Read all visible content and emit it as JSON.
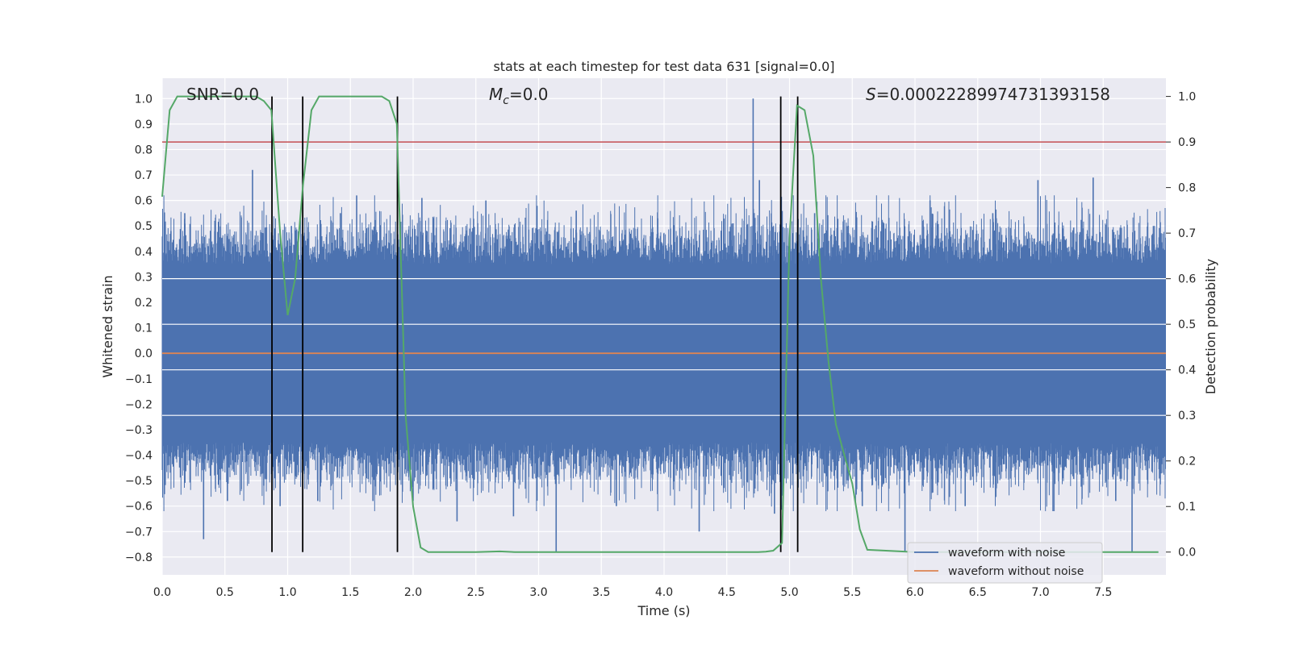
{
  "chart_data": {
    "type": "line",
    "title": "stats at each timestep for test data 631 [signal=0.0]",
    "xlabel": "Time (s)",
    "ylabel": "Whitened strain",
    "y2label": "Detection probability",
    "xlim": [
      0.0,
      8.0
    ],
    "ylim": [
      -0.87,
      1.08
    ],
    "y2lim": [
      -0.05,
      1.04
    ],
    "x_ticks": [
      0.0,
      0.5,
      1.0,
      1.5,
      2.0,
      2.5,
      3.0,
      3.5,
      4.0,
      4.5,
      5.0,
      5.5,
      6.0,
      6.5,
      7.0,
      7.5
    ],
    "x_tick_labels": [
      "0.0",
      "0.5",
      "1.0",
      "1.5",
      "2.0",
      "2.5",
      "3.0",
      "3.5",
      "4.0",
      "4.5",
      "5.0",
      "5.5",
      "6.0",
      "6.5",
      "7.0",
      "7.5"
    ],
    "y_ticks": [
      -0.8,
      -0.7,
      -0.6,
      -0.5,
      -0.4,
      -0.3,
      -0.2,
      -0.1,
      0.0,
      0.1,
      0.2,
      0.3,
      0.4,
      0.5,
      0.6,
      0.7,
      0.8,
      0.9,
      1.0
    ],
    "y_tick_labels": [
      "−0.8",
      "−0.7",
      "−0.6",
      "−0.5",
      "−0.4",
      "−0.3",
      "−0.2",
      "−0.1",
      "0.0",
      "0.1",
      "0.2",
      "0.3",
      "0.4",
      "0.5",
      "0.6",
      "0.7",
      "0.8",
      "0.9",
      "1.0"
    ],
    "y2_ticks": [
      0.0,
      0.1,
      0.2,
      0.3,
      0.4,
      0.5,
      0.6,
      0.7,
      0.8,
      0.9,
      1.0
    ],
    "y2_tick_labels": [
      "0.0",
      "0.1",
      "0.2",
      "0.3",
      "0.4",
      "0.5",
      "0.6",
      "0.7",
      "0.8",
      "0.9",
      "1.0"
    ],
    "annotations": {
      "snr": "SNR=0.0",
      "mc_symbol": "M",
      "mc_sub": "c",
      "mc_value": "=0.0",
      "s_symbol": "S",
      "s_value": "=0.00022289974731393158"
    },
    "threshold_y2": 0.9,
    "vertical_lines_x": [
      0.875,
      1.12,
      1.875,
      4.93,
      5.065
    ],
    "series": [
      {
        "name": "waveform with noise",
        "color": "#4c72b0",
        "envelope_amplitude": 0.35,
        "spikes": [
          {
            "x": 0.07,
            "y": 0.48
          },
          {
            "x": 0.18,
            "y": 0.55
          },
          {
            "x": 0.26,
            "y": 0.43
          },
          {
            "x": 0.33,
            "y": -0.73
          },
          {
            "x": 0.42,
            "y": 0.52
          },
          {
            "x": 0.52,
            "y": -0.58
          },
          {
            "x": 0.72,
            "y": 0.72
          },
          {
            "x": 0.81,
            "y": -0.52
          },
          {
            "x": 0.94,
            "y": -0.6
          },
          {
            "x": 1.03,
            "y": 0.5
          },
          {
            "x": 1.24,
            "y": -0.58
          },
          {
            "x": 1.42,
            "y": 0.55
          },
          {
            "x": 1.55,
            "y": 0.62
          },
          {
            "x": 1.68,
            "y": -0.58
          },
          {
            "x": 2.0,
            "y": -0.58
          },
          {
            "x": 2.07,
            "y": 0.61
          },
          {
            "x": 2.35,
            "y": -0.66
          },
          {
            "x": 2.58,
            "y": 0.6
          },
          {
            "x": 2.8,
            "y": -0.64
          },
          {
            "x": 3.14,
            "y": -0.78
          },
          {
            "x": 3.3,
            "y": 0.56
          },
          {
            "x": 3.62,
            "y": -0.6
          },
          {
            "x": 3.95,
            "y": 0.53
          },
          {
            "x": 4.28,
            "y": -0.7
          },
          {
            "x": 4.55,
            "y": 0.51
          },
          {
            "x": 4.71,
            "y": 1.0
          },
          {
            "x": 4.76,
            "y": 0.68
          },
          {
            "x": 4.88,
            "y": -0.63
          },
          {
            "x": 5.2,
            "y": 0.55
          },
          {
            "x": 5.58,
            "y": -0.6
          },
          {
            "x": 5.92,
            "y": -0.78
          },
          {
            "x": 6.12,
            "y": 0.6
          },
          {
            "x": 6.4,
            "y": -0.6
          },
          {
            "x": 6.62,
            "y": 0.55
          },
          {
            "x": 6.98,
            "y": 0.68
          },
          {
            "x": 7.1,
            "y": -0.62
          },
          {
            "x": 7.42,
            "y": 0.69
          },
          {
            "x": 7.6,
            "y": -0.58
          },
          {
            "x": 7.73,
            "y": -0.78
          },
          {
            "x": 7.9,
            "y": 0.5
          }
        ]
      },
      {
        "name": "waveform without noise",
        "color": "#dd8452",
        "x": [
          0.0,
          8.0
        ],
        "y": [
          0.0,
          0.0
        ]
      },
      {
        "name": "detection probability",
        "color": "#55a868",
        "axis": "y2",
        "x": [
          0.0,
          0.06,
          0.12,
          0.19,
          0.25,
          0.5,
          0.75,
          0.81,
          0.87,
          0.94,
          1.0,
          1.06,
          1.12,
          1.19,
          1.25,
          1.31,
          1.5,
          1.75,
          1.81,
          1.87,
          1.94,
          2.0,
          2.06,
          2.12,
          2.5,
          2.69,
          2.81,
          3.0,
          3.5,
          4.0,
          4.5,
          4.75,
          4.81,
          4.87,
          4.94,
          5.0,
          5.06,
          5.12,
          5.19,
          5.25,
          5.31,
          5.37,
          5.5,
          5.56,
          5.62,
          6.0,
          6.5,
          7.0,
          7.5,
          7.94
        ],
        "y": [
          0.78,
          0.97,
          1.0,
          1.0,
          1.0,
          1.0,
          1.0,
          0.99,
          0.97,
          0.7,
          0.52,
          0.6,
          0.8,
          0.97,
          1.0,
          1.0,
          1.0,
          1.0,
          0.99,
          0.94,
          0.3,
          0.1,
          0.01,
          0.0,
          0.0,
          0.0015,
          0.0,
          0.0,
          0.0,
          0.0,
          0.0,
          0.0,
          0.001,
          0.003,
          0.02,
          0.69,
          0.98,
          0.97,
          0.87,
          0.6,
          0.42,
          0.28,
          0.15,
          0.05,
          0.005,
          0.0,
          0.0,
          0.0,
          0.0,
          0.0
        ]
      }
    ],
    "legend": {
      "position": "lower-right",
      "entries": [
        {
          "label": "waveform with noise",
          "color": "#4c72b0"
        },
        {
          "label": "waveform without noise",
          "color": "#dd8452"
        }
      ]
    },
    "colors": {
      "background": "#eaeaf2",
      "grid": "#ffffff",
      "threshold": "#c44e52",
      "vlines": "#000000"
    }
  }
}
